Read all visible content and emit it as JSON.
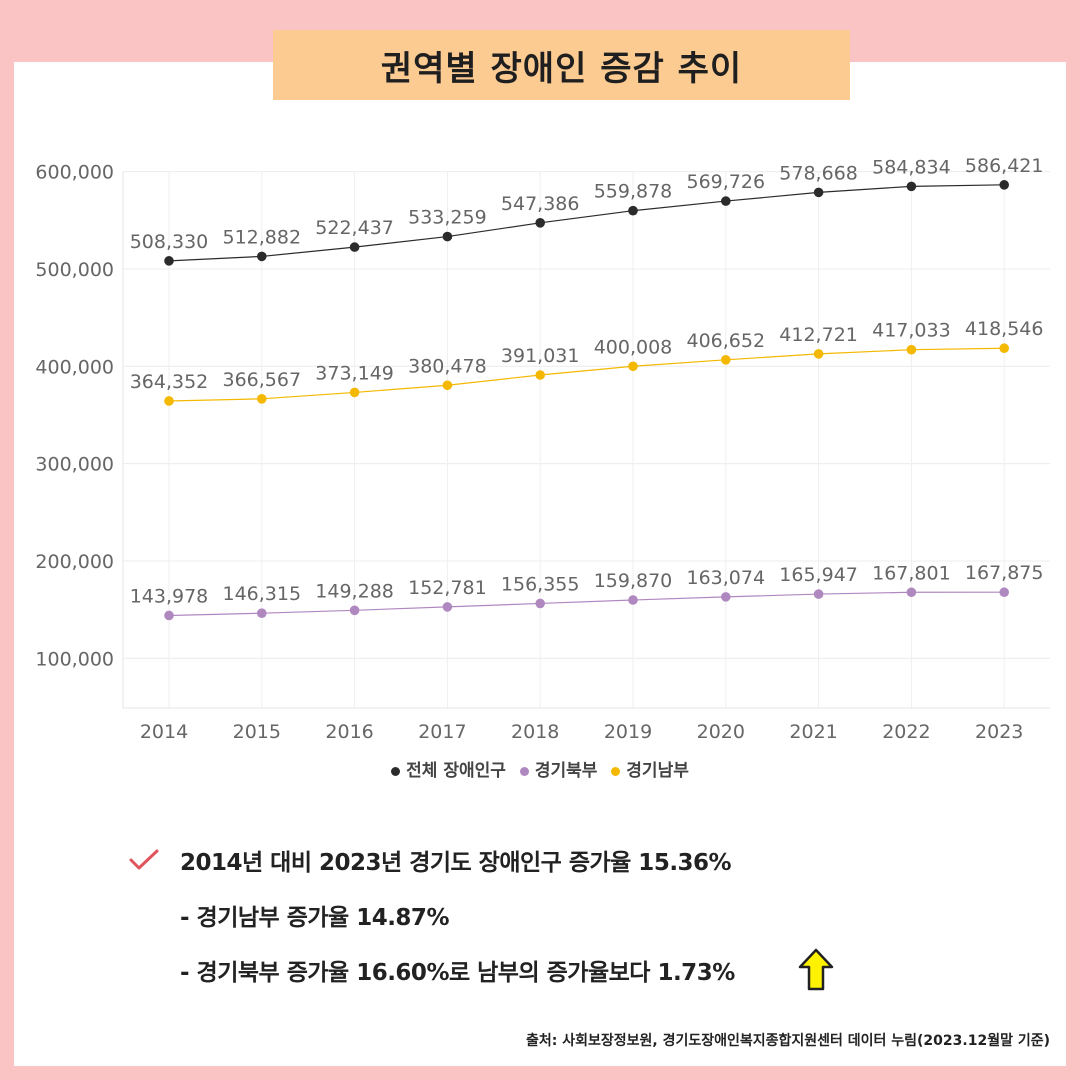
{
  "title": "권역별 장애인 증감 추이",
  "chart_data": {
    "type": "line",
    "categories": [
      "2014",
      "2015",
      "2016",
      "2017",
      "2018",
      "2019",
      "2020",
      "2021",
      "2022",
      "2023"
    ],
    "y_ticks": [
      "600,000",
      "500,000",
      "400,000",
      "300,000",
      "200,000",
      "100,000"
    ],
    "ylim": [
      50000,
      600000
    ],
    "grid": true,
    "legend_position": "bottom",
    "series": [
      {
        "name": "전체 장애인구",
        "color": "#2b2b2b",
        "values": [
          508330,
          512882,
          522437,
          533259,
          547386,
          559878,
          569726,
          578668,
          584834,
          586421
        ],
        "labels": [
          "508,330",
          "512,882",
          "522,437",
          "533,259",
          "547,386",
          "559,878",
          "569,726",
          "578,668",
          "584,834",
          "586,421"
        ]
      },
      {
        "name": "경기북부",
        "color": "#b088c0",
        "values": [
          143978,
          146315,
          149288,
          152781,
          156355,
          159870,
          163074,
          165947,
          167801,
          167875
        ],
        "labels": [
          "143,978",
          "146,315",
          "149,288",
          "152,781",
          "156,355",
          "159,870",
          "163,074",
          "165,947",
          "167,801",
          "167,875"
        ]
      },
      {
        "name": "경기남부",
        "color": "#f5b800",
        "values": [
          364352,
          366567,
          373149,
          380478,
          391031,
          400008,
          406652,
          412721,
          417033,
          418546
        ],
        "labels": [
          "364,352",
          "366,567",
          "373,149",
          "380,478",
          "391,031",
          "400,008",
          "406,652",
          "412,721",
          "417,033",
          "418,546"
        ]
      }
    ]
  },
  "summary": {
    "line1": "2014년 대비 2023년 경기도 장애인구 증가율 15.36%",
    "line2": "- 경기남부 증가율 14.87%",
    "line3": "- 경기북부 증가율 16.60%로 남부의 증가율보다 1.73%"
  },
  "icons": {
    "check": "check-icon",
    "arrow": "up-arrow-icon"
  },
  "source": "출처: 사회보장정보원, 경기도장애인복지종합지원센터 데이터 누림(2023.12월말 기준)"
}
